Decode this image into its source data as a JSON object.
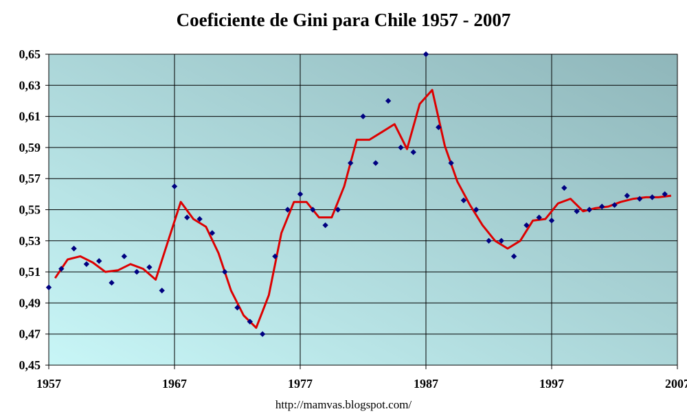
{
  "chart_data": {
    "type": "scatter",
    "title": "Coeficiente de Gini para Chile 1957 - 2007",
    "xlabel": "",
    "ylabel": "",
    "xlim": [
      1957,
      2007
    ],
    "ylim": [
      0.45,
      0.65
    ],
    "x_ticks": [
      "1957",
      "1967",
      "1977",
      "1987",
      "1997",
      "2007"
    ],
    "x_tick_values": [
      1957,
      1967,
      1977,
      1987,
      1997,
      2007
    ],
    "y_ticks": [
      "0,45",
      "0,47",
      "0,49",
      "0,51",
      "0,53",
      "0,55",
      "0,57",
      "0,59",
      "0,61",
      "0,63",
      "0,65"
    ],
    "y_tick_values": [
      0.45,
      0.47,
      0.49,
      0.51,
      0.53,
      0.55,
      0.57,
      0.59,
      0.61,
      0.63,
      0.65
    ],
    "grid": true,
    "legend": "none",
    "colors": {
      "points": "#000080",
      "trend": "#dd0000",
      "plot_bg_left": "#c8f6f7",
      "plot_bg_right": "#8fb6ba"
    },
    "series": [
      {
        "type": "scatter",
        "x": [
          1957,
          1958,
          1959,
          1960,
          1961,
          1962,
          1963,
          1964,
          1965,
          1966,
          1967,
          1968,
          1969,
          1970,
          1971,
          1972,
          1973,
          1974,
          1975,
          1976,
          1977,
          1978,
          1979,
          1980,
          1981,
          1982,
          1983,
          1984,
          1985,
          1986,
          1987,
          1988,
          1989,
          1990,
          1991,
          1992,
          1993,
          1994,
          1995,
          1996,
          1997,
          1998,
          1999,
          2000,
          2001,
          2002,
          2003,
          2004,
          2005,
          2006
        ],
        "y": [
          0.5,
          0.512,
          0.525,
          0.515,
          0.517,
          0.503,
          0.52,
          0.51,
          0.513,
          0.498,
          0.565,
          0.545,
          0.544,
          0.535,
          0.51,
          0.487,
          0.478,
          0.47,
          0.52,
          0.55,
          0.56,
          0.55,
          0.54,
          0.55,
          0.58,
          0.61,
          0.58,
          0.62,
          0.59,
          0.587,
          0.65,
          0.603,
          0.58,
          0.556,
          0.55,
          0.53,
          0.53,
          0.52,
          0.54,
          0.545,
          0.543,
          0.564,
          0.549,
          0.55,
          0.552,
          0.553,
          0.559,
          0.557,
          0.558,
          0.56
        ]
      },
      {
        "type": "line",
        "x": [
          1957.5,
          1958.5,
          1959.5,
          1960.5,
          1961.5,
          1962.5,
          1963.5,
          1964.5,
          1965.5,
          1966.5,
          1967.5,
          1968.5,
          1969.5,
          1970.5,
          1971.5,
          1972.5,
          1973.5,
          1974.5,
          1975.5,
          1976.5,
          1977.5,
          1978.5,
          1979.5,
          1980.5,
          1981.5,
          1982.5,
          1983.5,
          1984.5,
          1985.5,
          1986.5,
          1987.5,
          1988.5,
          1989.5,
          1990.5,
          1991.5,
          1992.5,
          1993.5,
          1994.5,
          1995.5,
          1996.5,
          1997.5,
          1998.5,
          1999.5,
          2000.5,
          2001.5,
          2002.5,
          2003.5,
          2004.5,
          2005.5,
          2006.5
        ],
        "y": [
          0.506,
          0.518,
          0.52,
          0.516,
          0.51,
          0.511,
          0.515,
          0.512,
          0.505,
          0.53,
          0.555,
          0.544,
          0.539,
          0.522,
          0.498,
          0.482,
          0.474,
          0.495,
          0.535,
          0.555,
          0.555,
          0.545,
          0.545,
          0.565,
          0.595,
          0.595,
          0.6,
          0.605,
          0.589,
          0.618,
          0.627,
          0.591,
          0.568,
          0.553,
          0.54,
          0.53,
          0.525,
          0.53,
          0.543,
          0.544,
          0.554,
          0.557,
          0.549,
          0.551,
          0.552,
          0.555,
          0.557,
          0.558,
          0.558,
          0.559
        ]
      }
    ]
  },
  "footer": {
    "url": "http://mamvas.blogspot.com/"
  }
}
